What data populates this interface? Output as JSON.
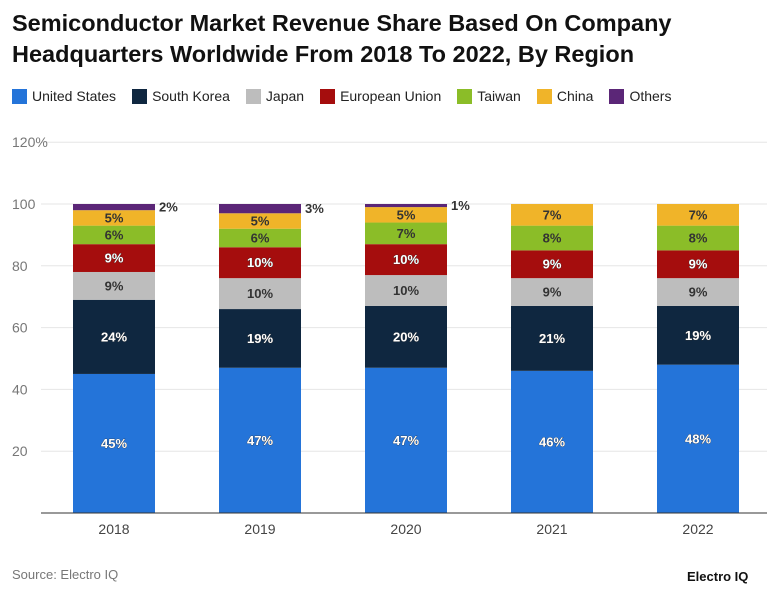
{
  "chart_data": {
    "type": "bar",
    "stacked": true,
    "title": "Semiconductor Market Revenue Share Based On Company Headquarters Worldwide From 2018 To 2022, By Region",
    "categories": [
      "2018",
      "2019",
      "2020",
      "2021",
      "2022"
    ],
    "ylim": [
      0,
      120
    ],
    "yticks": [
      "20",
      "40",
      "60",
      "80",
      "100",
      "120%"
    ],
    "grid": true,
    "legend_position": "top-left",
    "series": [
      {
        "name": "United States",
        "color": "#2474d9",
        "values": [
          45,
          47,
          47,
          46,
          48
        ]
      },
      {
        "name": "South Korea",
        "color": "#0f2740",
        "values": [
          24,
          19,
          20,
          21,
          19
        ]
      },
      {
        "name": "Japan",
        "color": "#bdbdbd",
        "values": [
          9,
          10,
          10,
          9,
          9
        ]
      },
      {
        "name": "European Union",
        "color": "#a50d0d",
        "values": [
          9,
          10,
          10,
          9,
          9
        ]
      },
      {
        "name": "Taiwan",
        "color": "#8bbd28",
        "values": [
          6,
          6,
          7,
          8,
          8
        ]
      },
      {
        "name": "China",
        "color": "#f0b429",
        "values": [
          5,
          5,
          5,
          7,
          7
        ]
      },
      {
        "name": "Others",
        "color": "#5b2677",
        "values": [
          2,
          3,
          1,
          0,
          0
        ]
      }
    ]
  },
  "footer": {
    "source": "Source: Electro IQ",
    "brand": "Electro IQ"
  }
}
